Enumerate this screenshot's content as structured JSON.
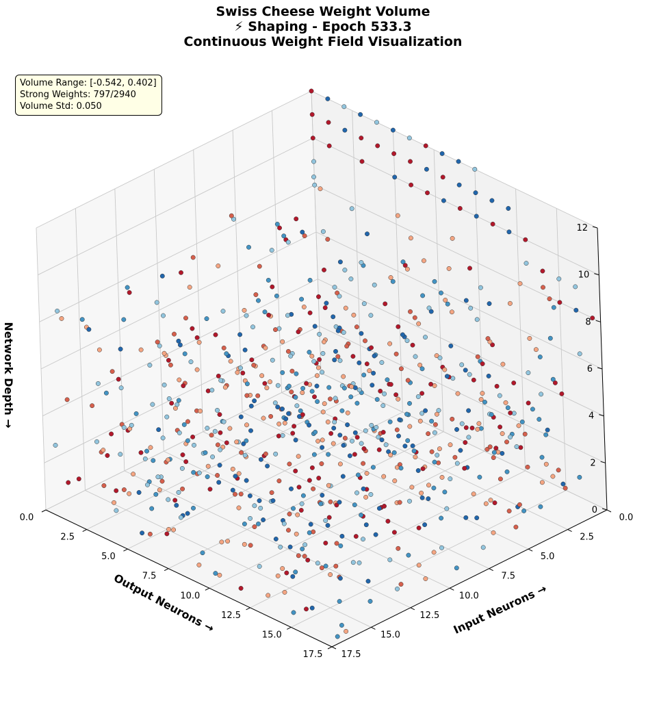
{
  "title": {
    "line1": "Swiss Cheese Weight Volume",
    "line2": "⚡ Shaping - Epoch 533.3",
    "line3": "Continuous Weight Field Visualization"
  },
  "stats": {
    "range": "Volume Range: [-0.542, 0.402]",
    "strong": "Strong Weights: 797/2940",
    "std": "Volume Std: 0.050"
  },
  "colors": {
    "pane_back": "#f2f2f2",
    "pane_floor": "#f5f5f5",
    "grid": "#c8c8c8",
    "strong_red": "#b2182b",
    "mid_red": "#d6604d",
    "light_red": "#f4a582",
    "strong_blue": "#2166ac",
    "mid_blue": "#4393c3",
    "light_blue": "#92c5de"
  },
  "chart_data": {
    "type": "scatter",
    "projection": "3d",
    "title": "Swiss Cheese Weight Volume\n⚡ Shaping - Epoch 533.3\nContinuous Weight Field Visualization",
    "xlabel": "Input Neurons →",
    "ylabel": "Output Neurons →",
    "zlabel": "Network Depth →",
    "xlim": [
      0,
      17.5
    ],
    "ylim": [
      0,
      17.5
    ],
    "zlim": [
      0,
      12
    ],
    "x_ticks": [
      "0.0",
      "2.5",
      "5.0",
      "7.5",
      "10.0",
      "12.5",
      "15.0",
      "17.5"
    ],
    "y_ticks": [
      "0.0",
      "2.5",
      "5.0",
      "7.5",
      "10.0",
      "12.5",
      "15.0",
      "17.5"
    ],
    "z_ticks": [
      "0",
      "2",
      "4",
      "6",
      "8",
      "10",
      "12"
    ],
    "colormap": "RdBu",
    "value_range": [
      -0.542,
      0.402
    ],
    "grid": true,
    "series": [
      {
        "points": [
          [
            0,
            0,
            12,
            -0.52
          ],
          [
            0,
            0,
            11,
            -0.53
          ],
          [
            0,
            0,
            10,
            -0.5
          ],
          [
            0,
            0,
            9,
            0.05
          ],
          [
            0,
            0,
            8,
            0.04
          ],
          [
            0,
            1,
            12,
            0.4
          ],
          [
            0,
            1,
            11,
            -0.44
          ],
          [
            0,
            1,
            10,
            -0.5
          ],
          [
            0,
            2,
            12,
            0.05
          ],
          [
            0,
            2,
            11,
            0.38
          ],
          [
            0,
            3,
            12,
            0.39
          ],
          [
            0,
            3,
            11,
            -0.48
          ],
          [
            0,
            3,
            10,
            -0.51
          ],
          [
            0,
            4,
            12,
            0.04
          ],
          [
            0,
            4,
            11,
            -0.47
          ],
          [
            0,
            5,
            12,
            0.38
          ],
          [
            0,
            5,
            11,
            -0.46
          ],
          [
            0,
            5,
            10,
            0.37
          ],
          [
            0,
            6,
            12,
            -0.05
          ],
          [
            0,
            6,
            11,
            -0.49
          ],
          [
            0,
            6,
            10,
            -0.44
          ],
          [
            0,
            7,
            12,
            -0.49
          ],
          [
            0,
            7,
            11,
            0.36
          ],
          [
            0,
            7,
            10,
            -0.48
          ],
          [
            0,
            8,
            12,
            0.37
          ],
          [
            0,
            8,
            11,
            -0.5
          ],
          [
            0,
            8,
            10,
            0.36
          ],
          [
            0,
            9,
            12,
            0.36
          ],
          [
            0,
            9,
            11,
            0.35
          ],
          [
            0,
            9,
            10,
            -0.45
          ],
          [
            0,
            10,
            12,
            0.05
          ],
          [
            0,
            10,
            11,
            0.38
          ],
          [
            0,
            10,
            10,
            0.39
          ],
          [
            0,
            11,
            11,
            0.37
          ],
          [
            0,
            11,
            10,
            -0.49
          ],
          [
            0,
            12,
            11,
            0.4
          ],
          [
            0,
            12,
            10,
            0.38
          ],
          [
            0,
            13,
            10,
            -0.52
          ],
          [
            0,
            13,
            9,
            0.05
          ],
          [
            0,
            14,
            9,
            -0.5
          ],
          [
            0,
            15,
            8,
            -0.48
          ],
          [
            0,
            16,
            8,
            0.36
          ],
          [
            0,
            17,
            8,
            -0.51
          ],
          [
            0,
            16,
            9,
            0.04
          ],
          [
            0,
            15,
            9,
            0.06
          ]
        ]
      }
    ]
  }
}
